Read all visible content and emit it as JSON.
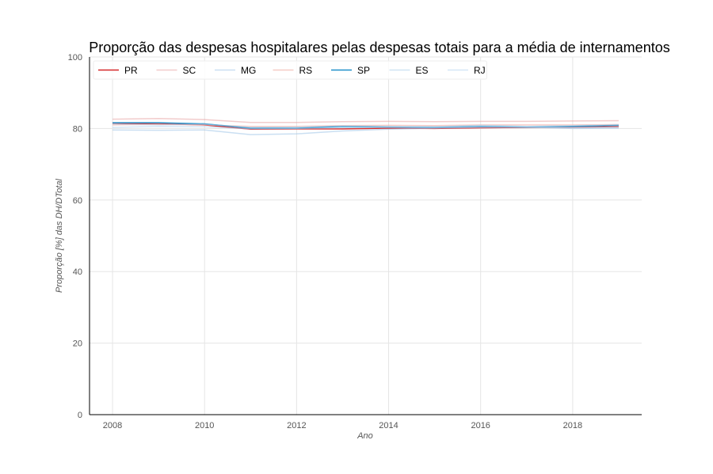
{
  "chart_data": {
    "type": "line",
    "title": "Proporção das despesas hospitalares pelas despesas totais para a média de internamentos",
    "xlabel": "Ano",
    "ylabel": "Proporção [%] das DH/DTotal",
    "xlim": [
      2007.5,
      2019.5
    ],
    "ylim": [
      0,
      100
    ],
    "xticks": [
      2008,
      2010,
      2012,
      2014,
      2016,
      2018
    ],
    "yticks": [
      0,
      20,
      40,
      60,
      80,
      100
    ],
    "grid": true,
    "legend_position": "top-left",
    "x": [
      2008,
      2009,
      2010,
      2011,
      2012,
      2013,
      2014,
      2015,
      2016,
      2017,
      2018,
      2019
    ],
    "series": [
      {
        "name": "PR",
        "color": "#d62728",
        "opacity": 1.0,
        "values": [
          81.5,
          81.3,
          81.0,
          79.8,
          79.9,
          79.9,
          80.1,
          80.0,
          80.2,
          80.3,
          80.4,
          80.5
        ]
      },
      {
        "name": "SC",
        "color": "#e8a3a3",
        "opacity": 0.55,
        "values": [
          82.6,
          82.8,
          82.5,
          81.7,
          81.7,
          81.9,
          82.0,
          81.9,
          82.0,
          82.0,
          82.1,
          82.2
        ]
      },
      {
        "name": "MG",
        "color": "#9ec4e8",
        "opacity": 0.55,
        "values": [
          79.6,
          79.5,
          79.6,
          78.3,
          78.5,
          79.3,
          79.8,
          80.1,
          80.3,
          80.4,
          80.0,
          80.1
        ]
      },
      {
        "name": "RS",
        "color": "#f0a8a0",
        "opacity": 0.6,
        "values": [
          81.0,
          81.2,
          81.0,
          80.6,
          80.6,
          80.8,
          80.9,
          80.8,
          81.0,
          81.0,
          81.0,
          81.1
        ]
      },
      {
        "name": "SP",
        "color": "#1f8fc9",
        "opacity": 1.0,
        "values": [
          81.6,
          81.6,
          81.3,
          80.1,
          80.1,
          80.6,
          80.4,
          80.3,
          80.6,
          80.4,
          80.6,
          80.9
        ]
      },
      {
        "name": "ES",
        "color": "#a9cdea",
        "opacity": 0.55,
        "values": [
          81.2,
          81.0,
          81.2,
          80.3,
          80.4,
          80.7,
          80.6,
          80.5,
          80.9,
          80.6,
          80.8,
          81.0
        ]
      },
      {
        "name": "RJ",
        "color": "#b3d3ee",
        "opacity": 0.55,
        "values": [
          80.3,
          80.6,
          80.5,
          79.9,
          80.0,
          80.2,
          80.3,
          80.2,
          80.5,
          80.4,
          80.3,
          80.4
        ]
      }
    ]
  }
}
